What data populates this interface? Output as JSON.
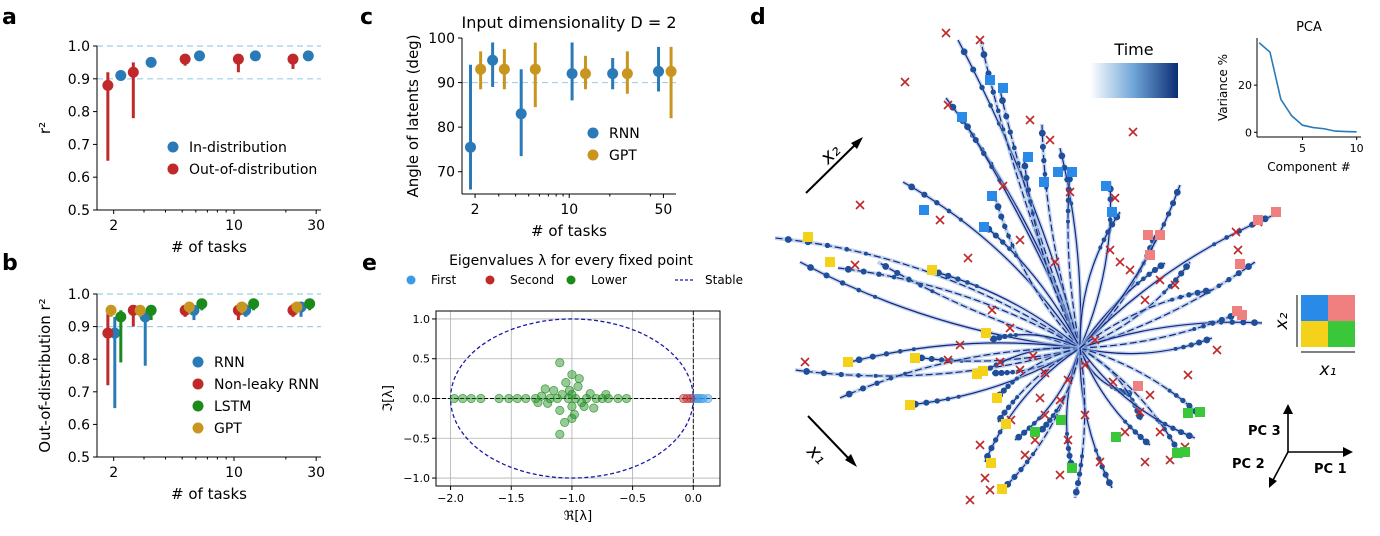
{
  "colors": {
    "rnn": "#2a7ab8",
    "nonleaky": "#c0282a",
    "lstm": "#1a8a1a",
    "gpt": "#c8961e",
    "dashed": "#9fd0e8",
    "first": "#3a9be8",
    "second": "#c0282a",
    "lower": "#1a8a1a",
    "stable": "#1a1aa8",
    "traj": "#1a237e",
    "sq_blue": "#2a8ae8",
    "sq_pink": "#f08080",
    "sq_yellow": "#f5d21a",
    "sq_green": "#3ac83a",
    "cross": "#c0282a"
  },
  "panels": {
    "a": "a",
    "b": "b",
    "c": "c",
    "d": "d",
    "e": "e"
  },
  "chart_data": [
    {
      "id": "a",
      "type": "scatter",
      "title": "",
      "xlabel": "# of tasks",
      "ylabel": "r²",
      "xscale": "log",
      "xlim": [
        1.6,
        32
      ],
      "ylim": [
        0.5,
        1.0
      ],
      "xticks": [
        2,
        10,
        30
      ],
      "xtick_labels": [
        "2",
        "10",
        "30"
      ],
      "yticks": [
        0.5,
        0.6,
        0.7,
        0.8,
        0.9,
        1.0
      ],
      "ytick_labels": [
        "0.5",
        "0.6",
        "0.7",
        "0.8",
        "0.9",
        "1.0"
      ],
      "hlines": [
        0.9,
        1.0
      ],
      "legend": [
        "In-distribution",
        "Out-of-distribution"
      ],
      "series": [
        {
          "name": "In-distribution",
          "color_key": "rnn",
          "points": [
            [
              2.2,
              0.91,
              0.91,
              0.91
            ],
            [
              3.3,
              0.95,
              0.95,
              0.95
            ],
            [
              6.3,
              0.97,
              0.97,
              0.97
            ],
            [
              13.3,
              0.97,
              0.97,
              0.97
            ],
            [
              27,
              0.97,
              0.97,
              0.97
            ]
          ]
        },
        {
          "name": "Out-of-distribution",
          "color_key": "nonleaky",
          "points": [
            [
              1.85,
              0.88,
              0.65,
              0.92
            ],
            [
              2.6,
              0.92,
              0.78,
              0.95
            ],
            [
              5.2,
              0.96,
              0.94,
              0.97
            ],
            [
              10.6,
              0.96,
              0.92,
              0.97
            ],
            [
              22,
              0.96,
              0.93,
              0.97
            ]
          ]
        }
      ]
    },
    {
      "id": "b",
      "type": "scatter",
      "title": "",
      "xlabel": "# of tasks",
      "ylabel": "Out-of-distribution r²",
      "xscale": "log",
      "xlim": [
        1.6,
        32
      ],
      "ylim": [
        0.5,
        1.0
      ],
      "xticks": [
        2,
        10,
        30
      ],
      "xtick_labels": [
        "2",
        "10",
        "30"
      ],
      "yticks": [
        0.5,
        0.6,
        0.7,
        0.8,
        0.9,
        1.0
      ],
      "ytick_labels": [
        "0.5",
        "0.6",
        "0.7",
        "0.8",
        "0.9",
        "1.0"
      ],
      "hlines": [
        0.9,
        1.0
      ],
      "legend": [
        "RNN",
        "Non-leaky RNN",
        "LSTM",
        "GPT"
      ],
      "series": [
        {
          "name": "RNN",
          "color_key": "rnn",
          "points": [
            [
              2.03,
              0.88,
              0.65,
              0.93
            ],
            [
              3.05,
              0.93,
              0.78,
              0.95
            ],
            [
              5.85,
              0.95,
              0.92,
              0.96
            ],
            [
              11.7,
              0.95,
              0.93,
              0.97
            ],
            [
              24.5,
              0.96,
              0.93,
              0.97
            ]
          ]
        },
        {
          "name": "Non-leaky RNN",
          "color_key": "nonleaky",
          "points": [
            [
              1.85,
              0.88,
              0.72,
              0.94
            ],
            [
              2.6,
              0.95,
              0.9,
              0.96
            ],
            [
              5.2,
              0.95,
              0.93,
              0.96
            ],
            [
              10.6,
              0.95,
              0.92,
              0.97
            ],
            [
              22,
              0.95,
              0.93,
              0.97
            ]
          ]
        },
        {
          "name": "LSTM",
          "color_key": "lstm",
          "points": [
            [
              2.2,
              0.93,
              0.79,
              0.95
            ],
            [
              3.3,
              0.95,
              0.92,
              0.96
            ],
            [
              6.5,
              0.97,
              0.95,
              0.97
            ],
            [
              13,
              0.97,
              0.95,
              0.98
            ],
            [
              27.5,
              0.97,
              0.95,
              0.98
            ]
          ]
        },
        {
          "name": "GPT",
          "color_key": "gpt",
          "points": [
            [
              1.93,
              0.95,
              0.93,
              0.96
            ],
            [
              2.85,
              0.95,
              0.93,
              0.96
            ],
            [
              5.5,
              0.96,
              0.94,
              0.97
            ],
            [
              11.1,
              0.96,
              0.94,
              0.97
            ],
            [
              23.2,
              0.96,
              0.94,
              0.97
            ]
          ]
        }
      ]
    },
    {
      "id": "c",
      "type": "scatter",
      "title": "Input dimensionality D = 2",
      "xlabel": "# of tasks",
      "ylabel": "Angle of latents (deg)",
      "xscale": "log",
      "xlim": [
        1.6,
        62
      ],
      "ylim": [
        65,
        100
      ],
      "xticks": [
        2,
        10,
        50
      ],
      "xtick_labels": [
        "2",
        "10",
        "50"
      ],
      "yticks": [
        70,
        80,
        90,
        100
      ],
      "ytick_labels": [
        "70",
        "80",
        "90",
        "100"
      ],
      "hlines": [
        90
      ],
      "legend": [
        "RNN",
        "GPT"
      ],
      "series": [
        {
          "name": "RNN",
          "color_key": "rnn",
          "points": [
            [
              1.85,
              75.5,
              66,
              94
            ],
            [
              2.7,
              95,
              89,
              99
            ],
            [
              4.4,
              83,
              73.5,
              93
            ],
            [
              10.5,
              92,
              86,
              99
            ],
            [
              21,
              92,
              88.5,
              95.5
            ],
            [
              46,
              92.5,
              88,
              98
            ]
          ]
        },
        {
          "name": "GPT",
          "color_key": "gpt",
          "points": [
            [
              2.2,
              93,
              88.5,
              97
            ],
            [
              3.3,
              93,
              88.5,
              97.5
            ],
            [
              5.6,
              93,
              84.5,
              99
            ],
            [
              13.2,
              92,
              88.5,
              96
            ],
            [
              27,
              92,
              87.5,
              97
            ],
            [
              57,
              92.5,
              82,
              98
            ]
          ]
        }
      ]
    },
    {
      "id": "e",
      "type": "scatter",
      "title": "Eigenvalues λ for every fixed point",
      "xlabel": "ℜ[λ]",
      "ylabel": "ℑ[λ]",
      "xlim": [
        -2.12,
        0.22
      ],
      "ylim": [
        -1.1,
        1.1
      ],
      "xticks": [
        -2.0,
        -1.5,
        -1.0,
        -0.5,
        0.0
      ],
      "xtick_labels": [
        "−2.0",
        "−1.5",
        "−1.0",
        "−0.5",
        "0.0"
      ],
      "yticks": [
        -1.0,
        -0.5,
        0.0,
        0.5,
        1.0
      ],
      "ytick_labels": [
        "−1.0",
        "−0.5",
        "0.0",
        "0.5",
        "1.0"
      ],
      "legend": [
        "First",
        "Second",
        "Lower",
        "Stable"
      ],
      "stable_circle": {
        "cx": -1.0,
        "cy": 0.0,
        "r": 1.0
      },
      "series": [
        {
          "name": "First",
          "color_key": "first",
          "points": [
            [
              0.0,
              0.0
            ],
            [
              0.04,
              0.0
            ],
            [
              0.08,
              0.0
            ],
            [
              0.12,
              0.0
            ],
            [
              0.02,
              0.0
            ],
            [
              0.06,
              0.0
            ]
          ]
        },
        {
          "name": "Second",
          "color_key": "second",
          "points": [
            [
              -0.05,
              0.0
            ],
            [
              -0.02,
              0.0
            ],
            [
              -0.08,
              0.0
            ]
          ]
        },
        {
          "name": "Lower",
          "color_key": "lower",
          "points": [
            [
              -1.97,
              0.0
            ],
            [
              -1.9,
              0.0
            ],
            [
              -1.83,
              0.0
            ],
            [
              -1.75,
              0.0
            ],
            [
              -1.6,
              0.0
            ],
            [
              -1.52,
              0.0
            ],
            [
              -1.45,
              0.0
            ],
            [
              -1.38,
              0.0
            ],
            [
              -1.3,
              0.0
            ],
            [
              -1.25,
              0.03
            ],
            [
              -1.2,
              -0.06
            ],
            [
              -1.15,
              0.1
            ],
            [
              -1.1,
              -0.15
            ],
            [
              -1.05,
              0.2
            ],
            [
              -1.0,
              -0.25
            ],
            [
              -0.95,
              0.15
            ],
            [
              -0.9,
              -0.1
            ],
            [
              -0.85,
              0.06
            ],
            [
              -0.8,
              0.0
            ],
            [
              -0.75,
              0.0
            ],
            [
              -0.7,
              0.0
            ],
            [
              -0.62,
              0.0
            ],
            [
              -0.55,
              0.0
            ],
            [
              -1.0,
              0.3
            ],
            [
              -0.98,
              -0.2
            ],
            [
              -1.02,
              0.1
            ],
            [
              -1.08,
              0.05
            ],
            [
              -0.92,
              -0.05
            ],
            [
              -1.18,
              0.0
            ],
            [
              -1.12,
              0.0
            ],
            [
              -1.03,
              0.0
            ],
            [
              -0.97,
              0.0
            ],
            [
              -0.88,
              0.0
            ],
            [
              -1.06,
              -0.3
            ],
            [
              -0.94,
              0.25
            ],
            [
              -1.0,
              0.05
            ],
            [
              -1.0,
              -0.1
            ],
            [
              -1.1,
              0.45
            ],
            [
              -1.1,
              -0.45
            ],
            [
              -1.22,
              0.12
            ],
            [
              -0.82,
              -0.12
            ],
            [
              -1.28,
              -0.05
            ],
            [
              -0.72,
              0.05
            ]
          ]
        }
      ]
    }
  ],
  "panel_d": {
    "time_label": "Time",
    "x1_arrow": "x₁",
    "x2_arrow": "x₂",
    "pca": {
      "title": "PCA",
      "xlabel": "Component #",
      "ylabel": "Variance %",
      "type": "line",
      "x": [
        1,
        2,
        3,
        4,
        5,
        6,
        7,
        8,
        9,
        10
      ],
      "values": [
        38,
        34,
        14,
        7,
        3,
        2,
        1.5,
        0.5,
        0.3,
        0.2
      ],
      "xticks": [
        5,
        10
      ],
      "yticks": [
        0,
        20
      ],
      "xlim": [
        0.8,
        10.4
      ],
      "ylim": [
        -2,
        40
      ]
    },
    "quad_legend": {
      "x_label": "x₁",
      "y_label": "x₂"
    },
    "axes_labels": {
      "pc1": "PC 1",
      "pc2": "PC 2",
      "pc3": "PC 3"
    }
  }
}
